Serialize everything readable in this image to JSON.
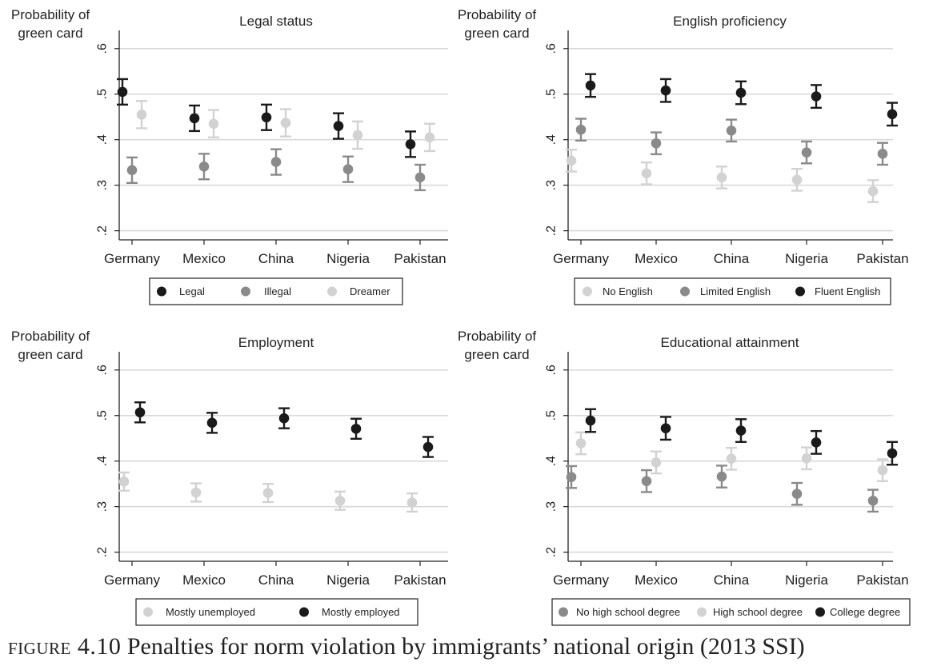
{
  "caption": {
    "label": "figure 4.10",
    "text": "Penalties for norm violation by immigrants’ national origin (2013 SSI)"
  },
  "chart_data": [
    {
      "type": "scatter",
      "title": "Legal status",
      "ylabel": "Probability of green card",
      "categories": [
        "Germany",
        "Mexico",
        "China",
        "Nigeria",
        "Pakistan"
      ],
      "yticks": [
        ".2",
        ".3",
        ".4",
        ".5",
        ".6"
      ],
      "ylim": [
        0.18,
        0.64
      ],
      "grid": true,
      "legend_position": "bottom",
      "series": [
        {
          "name": "Legal",
          "color": "#1a1a1a",
          "values": [
            0.505,
            0.447,
            0.449,
            0.43,
            0.39
          ],
          "lower": [
            0.477,
            0.419,
            0.421,
            0.402,
            0.362
          ],
          "upper": [
            0.533,
            0.475,
            0.477,
            0.458,
            0.418
          ]
        },
        {
          "name": "Illegal",
          "color": "#8a8a8a",
          "values": [
            0.333,
            0.341,
            0.351,
            0.335,
            0.317
          ],
          "lower": [
            0.305,
            0.313,
            0.323,
            0.307,
            0.289
          ],
          "upper": [
            0.361,
            0.369,
            0.379,
            0.363,
            0.345
          ]
        },
        {
          "name": "Dreamer",
          "color": "#d2d2d2",
          "values": [
            0.455,
            0.435,
            0.437,
            0.41,
            0.405
          ],
          "lower": [
            0.425,
            0.405,
            0.407,
            0.38,
            0.375
          ],
          "upper": [
            0.485,
            0.465,
            0.467,
            0.44,
            0.435
          ]
        }
      ]
    },
    {
      "type": "scatter",
      "title": "English proficiency",
      "ylabel": "Probability of green card",
      "categories": [
        "Germany",
        "Mexico",
        "China",
        "Nigeria",
        "Pakistan"
      ],
      "yticks": [
        ".2",
        ".3",
        ".4",
        ".5",
        ".6"
      ],
      "ylim": [
        0.18,
        0.64
      ],
      "grid": true,
      "legend_position": "bottom",
      "series": [
        {
          "name": "No English",
          "color": "#d2d2d2",
          "values": [
            0.354,
            0.326,
            0.317,
            0.312,
            0.287
          ],
          "lower": [
            0.33,
            0.302,
            0.293,
            0.288,
            0.263
          ],
          "upper": [
            0.378,
            0.35,
            0.341,
            0.336,
            0.311
          ]
        },
        {
          "name": "Limited English",
          "color": "#8a8a8a",
          "values": [
            0.422,
            0.392,
            0.42,
            0.372,
            0.369
          ],
          "lower": [
            0.398,
            0.368,
            0.396,
            0.348,
            0.345
          ],
          "upper": [
            0.446,
            0.416,
            0.444,
            0.396,
            0.393
          ]
        },
        {
          "name": "Fluent English",
          "color": "#1a1a1a",
          "values": [
            0.519,
            0.508,
            0.503,
            0.495,
            0.456
          ],
          "lower": [
            0.494,
            0.483,
            0.478,
            0.47,
            0.431
          ],
          "upper": [
            0.544,
            0.533,
            0.528,
            0.52,
            0.481
          ]
        }
      ]
    },
    {
      "type": "scatter",
      "title": "Employment",
      "ylabel": "Probability of green card",
      "categories": [
        "Germany",
        "Mexico",
        "China",
        "Nigeria",
        "Pakistan"
      ],
      "yticks": [
        ".2",
        ".3",
        ".4",
        ".5",
        ".6"
      ],
      "ylim": [
        0.18,
        0.64
      ],
      "grid": true,
      "legend_position": "bottom",
      "series": [
        {
          "name": "Mostly unemployed",
          "color": "#d2d2d2",
          "values": [
            0.355,
            0.331,
            0.33,
            0.313,
            0.309
          ],
          "lower": [
            0.335,
            0.311,
            0.31,
            0.293,
            0.289
          ],
          "upper": [
            0.375,
            0.351,
            0.35,
            0.333,
            0.329
          ]
        },
        {
          "name": "Mostly employed",
          "color": "#1a1a1a",
          "values": [
            0.507,
            0.484,
            0.494,
            0.471,
            0.431
          ],
          "lower": [
            0.485,
            0.462,
            0.472,
            0.449,
            0.409
          ],
          "upper": [
            0.529,
            0.506,
            0.516,
            0.493,
            0.453
          ]
        }
      ]
    },
    {
      "type": "scatter",
      "title": "Educational attainment",
      "ylabel": "Probability of green card",
      "categories": [
        "Germany",
        "Mexico",
        "China",
        "Nigeria",
        "Pakistan"
      ],
      "yticks": [
        ".2",
        ".3",
        ".4",
        ".5",
        ".6"
      ],
      "ylim": [
        0.18,
        0.64
      ],
      "grid": true,
      "legend_position": "bottom",
      "series": [
        {
          "name": "No high school degree",
          "color": "#8a8a8a",
          "values": [
            0.365,
            0.356,
            0.366,
            0.328,
            0.313
          ],
          "lower": [
            0.341,
            0.332,
            0.342,
            0.304,
            0.289
          ],
          "upper": [
            0.389,
            0.38,
            0.39,
            0.352,
            0.337
          ]
        },
        {
          "name": "High school degree",
          "color": "#d2d2d2",
          "values": [
            0.439,
            0.397,
            0.405,
            0.406,
            0.38
          ],
          "lower": [
            0.415,
            0.373,
            0.381,
            0.382,
            0.356
          ],
          "upper": [
            0.463,
            0.421,
            0.429,
            0.43,
            0.404
          ]
        },
        {
          "name": "College degree",
          "color": "#1a1a1a",
          "values": [
            0.489,
            0.472,
            0.467,
            0.441,
            0.417
          ],
          "lower": [
            0.464,
            0.447,
            0.442,
            0.416,
            0.392
          ],
          "upper": [
            0.514,
            0.497,
            0.492,
            0.466,
            0.442
          ]
        }
      ]
    }
  ]
}
